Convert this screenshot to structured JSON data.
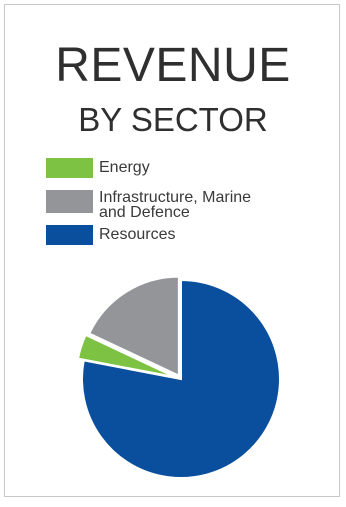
{
  "title_line1": "REVENUE",
  "title_line2": "BY SECTOR",
  "legend": [
    {
      "label": "Energy",
      "color": "#7dc242"
    },
    {
      "label": "Infrastructure, Marine\nand Defence",
      "color": "#939598"
    },
    {
      "label": "Resources",
      "color": "#0a4f9e"
    }
  ],
  "chart_data": {
    "type": "pie",
    "title": "REVENUE BY SECTOR",
    "categories": [
      "Energy",
      "Infrastructure, Marine and Defence",
      "Resources"
    ],
    "values": [
      4,
      18,
      78
    ],
    "unit": "%",
    "colors": [
      "#7dc242",
      "#939598",
      "#0a4f9e"
    ],
    "legend_position": "top"
  }
}
